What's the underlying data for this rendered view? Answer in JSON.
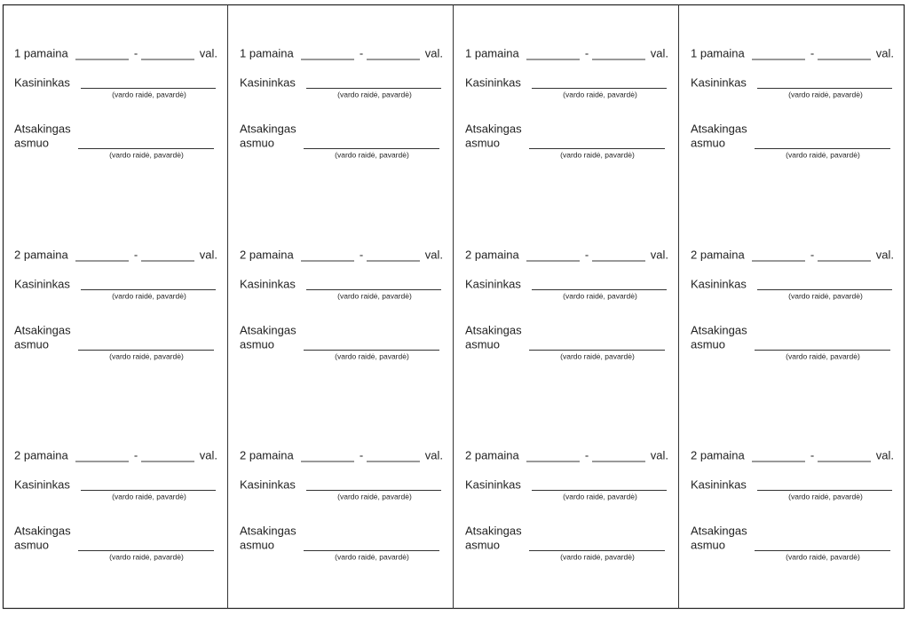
{
  "columns": [
    {
      "blocks": [
        {
          "shift": "1 pamaina",
          "dash": "-",
          "unit": "val.",
          "cashier": "Kasininkas",
          "cashier_hint": "(vardo raidė, pavardė)",
          "responsible_1": "Atsakingas",
          "responsible_2": "asmuo",
          "responsible_hint": "(vardo raidė, pavardė)"
        },
        {
          "shift": "2 pamaina",
          "dash": "-",
          "unit": "val.",
          "cashier": "Kasininkas",
          "cashier_hint": "(vardo raidė, pavardė)",
          "responsible_1": "Atsakingas",
          "responsible_2": "asmuo",
          "responsible_hint": "(vardo raidė, pavardė)"
        },
        {
          "shift": "2 pamaina",
          "dash": "-",
          "unit": "val.",
          "cashier": "Kasininkas",
          "cashier_hint": "(vardo raidė, pavardė)",
          "responsible_1": "Atsakingas",
          "responsible_2": "asmuo",
          "responsible_hint": "(vardo raidė, pavardė)"
        }
      ]
    },
    {
      "blocks": [
        {
          "shift": "1 pamaina",
          "dash": "-",
          "unit": "val.",
          "cashier": "Kasininkas",
          "cashier_hint": "(vardo raidė, pavardė)",
          "responsible_1": "Atsakingas",
          "responsible_2": "asmuo",
          "responsible_hint": "(vardo raidė, pavardė)"
        },
        {
          "shift": "2 pamaina",
          "dash": "-",
          "unit": "val.",
          "cashier": "Kasininkas",
          "cashier_hint": "(vardo raidė, pavardė)",
          "responsible_1": "Atsakingas",
          "responsible_2": "asmuo",
          "responsible_hint": "(vardo raidė, pavardė)"
        },
        {
          "shift": "2 pamaina",
          "dash": "-",
          "unit": "val.",
          "cashier": "Kasininkas",
          "cashier_hint": "(vardo raidė, pavardė)",
          "responsible_1": "Atsakingas",
          "responsible_2": "asmuo",
          "responsible_hint": "(vardo raidė, pavardė)"
        }
      ]
    },
    {
      "blocks": [
        {
          "shift": "1 pamaina",
          "dash": "-",
          "unit": "val.",
          "cashier": "Kasininkas",
          "cashier_hint": "(vardo raidė, pavardė)",
          "responsible_1": "Atsakingas",
          "responsible_2": "asmuo",
          "responsible_hint": "(vardo raidė, pavardė)"
        },
        {
          "shift": "2 pamaina",
          "dash": "-",
          "unit": "val.",
          "cashier": "Kasininkas",
          "cashier_hint": "(vardo raidė, pavardė)",
          "responsible_1": "Atsakingas",
          "responsible_2": "asmuo",
          "responsible_hint": "(vardo raidė, pavardė)"
        },
        {
          "shift": "2 pamaina",
          "dash": "-",
          "unit": "val.",
          "cashier": "Kasininkas",
          "cashier_hint": "(vardo raidė, pavardė)",
          "responsible_1": "Atsakingas",
          "responsible_2": "asmuo",
          "responsible_hint": "(vardo raidė, pavardė)"
        }
      ]
    },
    {
      "blocks": [
        {
          "shift": "1 pamaina",
          "dash": "-",
          "unit": "val.",
          "cashier": "Kasininkas",
          "cashier_hint": "(vardo raidė, pavardė)",
          "responsible_1": "Atsakingas",
          "responsible_2": "asmuo",
          "responsible_hint": "(vardo raidė, pavardė)"
        },
        {
          "shift": "2 pamaina",
          "dash": "-",
          "unit": "val.",
          "cashier": "Kasininkas",
          "cashier_hint": "(vardo raidė, pavardė)",
          "responsible_1": "Atsakingas",
          "responsible_2": "asmuo",
          "responsible_hint": "(vardo raidė, pavardė)"
        },
        {
          "shift": "2 pamaina",
          "dash": "-",
          "unit": "val.",
          "cashier": "Kasininkas",
          "cashier_hint": "(vardo raidė, pavardė)",
          "responsible_1": "Atsakingas",
          "responsible_2": "asmuo",
          "responsible_hint": "(vardo raidė, pavardė)"
        }
      ]
    }
  ]
}
